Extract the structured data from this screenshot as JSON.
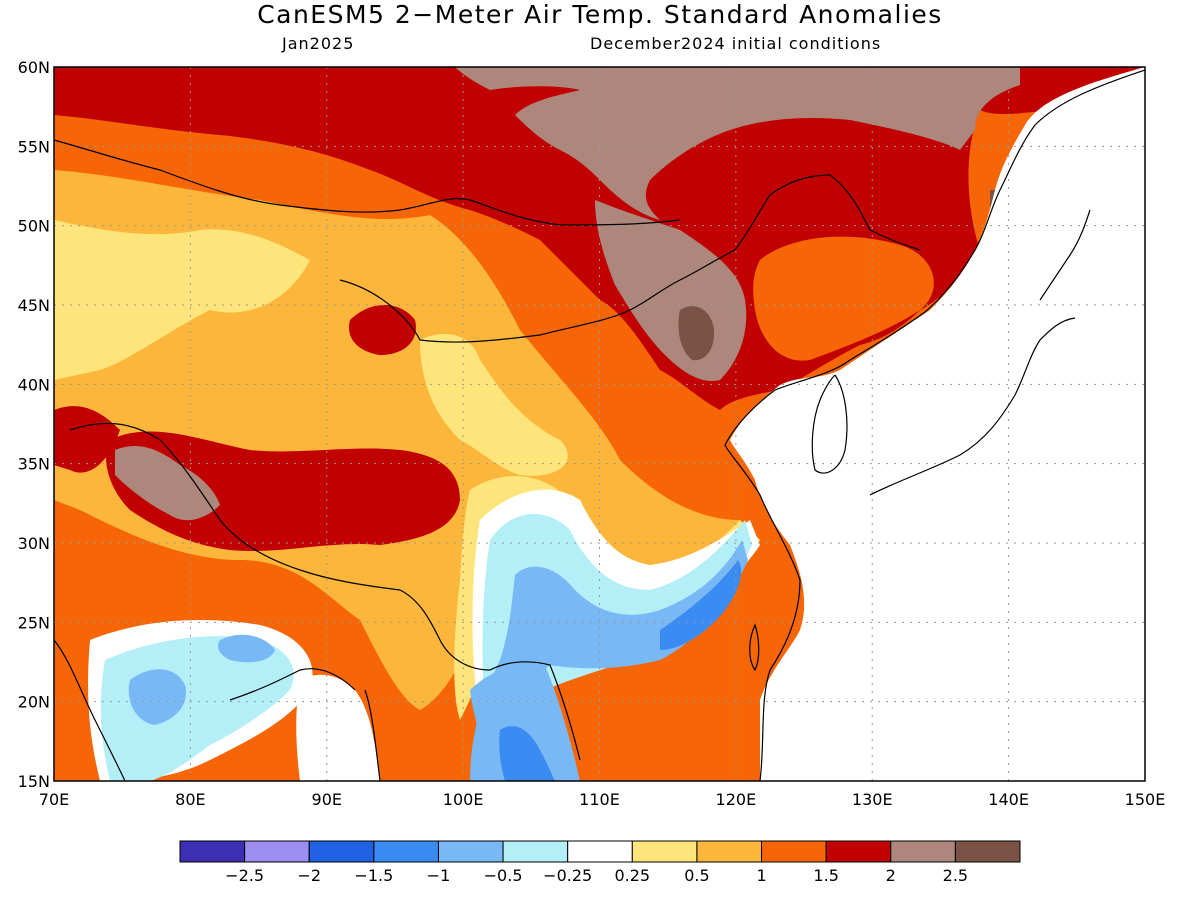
{
  "title": "CanESM5 2−Meter Air Temp. Standard Anomalies",
  "valid_month": "Jan2025",
  "initial_conditions": "December2024 initial conditions",
  "lat_labels": [
    "60N",
    "55N",
    "50N",
    "45N",
    "40N",
    "35N",
    "30N",
    "25N",
    "20N",
    "15N"
  ],
  "lon_labels": [
    "70E",
    "80E",
    "90E",
    "100E",
    "110E",
    "120E",
    "130E",
    "140E",
    "150E"
  ],
  "colorbar": {
    "colors": [
      "#3d2fb4",
      "#9d8ef2",
      "#1f63e4",
      "#3a8bf2",
      "#78b8f5",
      "#b4eef7",
      "#ffffff",
      "#fde47b",
      "#fcb63b",
      "#f66607",
      "#c00001",
      "#ad877c",
      "#7a5346"
    ],
    "labels": [
      "−2.5",
      "−2",
      "−1.5",
      "−1",
      "−0.5",
      "−0.25",
      "0.25",
      "0.5",
      "1",
      "1.5",
      "2",
      "2.5"
    ]
  },
  "palette": {
    "very_high": "#7a5346",
    "high": "#ad877c",
    "dark_red": "#c00001",
    "orange": "#f66607",
    "light_orange": "#fcb63b",
    "yellow": "#fde47b",
    "white": "#ffffff",
    "pale_blue": "#b4eef7",
    "light_blue": "#78b8f5",
    "blue": "#3a8bf2",
    "coastline": "#000000",
    "gridline": "#999999"
  }
}
